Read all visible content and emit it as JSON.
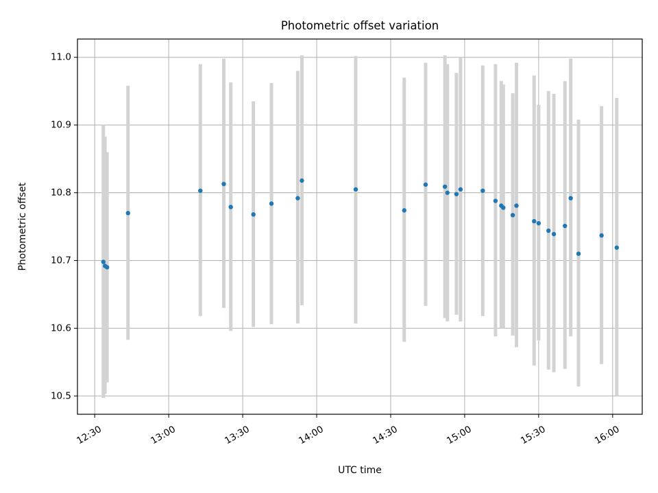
{
  "chart_data": {
    "type": "scatter",
    "title": "Photometric offset variation",
    "xlabel": "UTC time",
    "ylabel": "Photometric offset",
    "xlim": [
      "12:23",
      "16:12"
    ],
    "ylim": [
      10.473,
      11.027
    ],
    "xticks": [
      "12:30",
      "13:00",
      "13:30",
      "14:00",
      "14:30",
      "15:00",
      "15:30",
      "16:00"
    ],
    "yticks": [
      "10.5",
      "10.6",
      "10.7",
      "10.8",
      "10.9",
      "11.0"
    ],
    "grid": true,
    "colors": {
      "points": "#1f77b4",
      "errorbars": "#d3d3d3",
      "grid": "#b0b0b0"
    },
    "series": [
      {
        "points": [
          {
            "x": "12:33:30",
            "y": 10.698,
            "ylow": 10.497,
            "yhigh": 10.9
          },
          {
            "x": "12:34:10",
            "y": 10.692,
            "ylow": 10.503,
            "yhigh": 10.883
          },
          {
            "x": "12:35:00",
            "y": 10.69,
            "ylow": 10.52,
            "yhigh": 10.86
          },
          {
            "x": "12:43:30",
            "y": 10.77,
            "ylow": 10.583,
            "yhigh": 10.958
          },
          {
            "x": "13:12:50",
            "y": 10.803,
            "ylow": 10.618,
            "yhigh": 10.99
          },
          {
            "x": "13:22:20",
            "y": 10.813,
            "ylow": 10.63,
            "yhigh": 10.998
          },
          {
            "x": "13:25:10",
            "y": 10.779,
            "ylow": 10.596,
            "yhigh": 10.963
          },
          {
            "x": "13:34:20",
            "y": 10.768,
            "ylow": 10.602,
            "yhigh": 10.935
          },
          {
            "x": "13:41:40",
            "y": 10.784,
            "ylow": 10.606,
            "yhigh": 10.962
          },
          {
            "x": "13:52:20",
            "y": 10.792,
            "ylow": 10.607,
            "yhigh": 10.98
          },
          {
            "x": "13:54:00",
            "y": 10.818,
            "ylow": 10.634,
            "yhigh": 11.003
          },
          {
            "x": "14:15:50",
            "y": 10.805,
            "ylow": 10.607,
            "yhigh": 11.002
          },
          {
            "x": "14:35:30",
            "y": 10.774,
            "ylow": 10.58,
            "yhigh": 10.97
          },
          {
            "x": "14:44:10",
            "y": 10.812,
            "ylow": 10.633,
            "yhigh": 10.992
          },
          {
            "x": "14:52:00",
            "y": 10.809,
            "ylow": 10.615,
            "yhigh": 11.003
          },
          {
            "x": "14:53:00",
            "y": 10.8,
            "ylow": 10.61,
            "yhigh": 10.99
          },
          {
            "x": "14:56:40",
            "y": 10.798,
            "ylow": 10.62,
            "yhigh": 10.977
          },
          {
            "x": "14:58:20",
            "y": 10.805,
            "ylow": 10.61,
            "yhigh": 11.0
          },
          {
            "x": "15:07:20",
            "y": 10.803,
            "ylow": 10.618,
            "yhigh": 10.988
          },
          {
            "x": "15:12:30",
            "y": 10.788,
            "ylow": 10.588,
            "yhigh": 10.99
          },
          {
            "x": "15:14:50",
            "y": 10.781,
            "ylow": 10.6,
            "yhigh": 10.965
          },
          {
            "x": "15:15:40",
            "y": 10.778,
            "ylow": 10.6,
            "yhigh": 10.96
          },
          {
            "x": "15:19:30",
            "y": 10.767,
            "ylow": 10.589,
            "yhigh": 10.947
          },
          {
            "x": "15:21:00",
            "y": 10.781,
            "ylow": 10.572,
            "yhigh": 10.992
          },
          {
            "x": "15:28:10",
            "y": 10.758,
            "ylow": 10.545,
            "yhigh": 10.973
          },
          {
            "x": "15:30:00",
            "y": 10.755,
            "ylow": 10.582,
            "yhigh": 10.93
          },
          {
            "x": "15:34:00",
            "y": 10.744,
            "ylow": 10.539,
            "yhigh": 10.95
          },
          {
            "x": "15:36:10",
            "y": 10.739,
            "ylow": 10.535,
            "yhigh": 10.946
          },
          {
            "x": "15:40:40",
            "y": 10.751,
            "ylow": 10.54,
            "yhigh": 10.965
          },
          {
            "x": "15:43:00",
            "y": 10.792,
            "ylow": 10.588,
            "yhigh": 10.998
          },
          {
            "x": "15:46:10",
            "y": 10.71,
            "ylow": 10.514,
            "yhigh": 10.908
          },
          {
            "x": "15:55:30",
            "y": 10.737,
            "ylow": 10.547,
            "yhigh": 10.928
          },
          {
            "x": "16:01:40",
            "y": 10.719,
            "ylow": 10.5,
            "yhigh": 10.94
          }
        ]
      }
    ]
  }
}
